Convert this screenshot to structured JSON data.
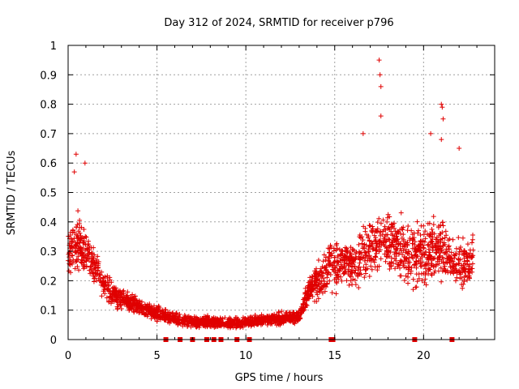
{
  "chart_data": {
    "type": "scatter",
    "title": "Day 312 of 2024, SRMTID for receiver p796",
    "xlabel": "GPS time / hours",
    "ylabel": "SRMTID / TECUs",
    "xlim": [
      0,
      24
    ],
    "ylim": [
      0,
      1
    ],
    "xticks": [
      0,
      5,
      10,
      15,
      20
    ],
    "xtick_labels": [
      "0",
      "5",
      "10",
      "15",
      "20"
    ],
    "yticks": [
      0,
      0.1,
      0.2,
      0.3,
      0.4,
      0.5,
      0.6,
      0.7,
      0.8,
      0.9,
      1
    ],
    "ytick_labels": [
      "0",
      "0.1",
      "0.2",
      "0.3",
      "0.4",
      "0.5",
      "0.6",
      "0.7",
      "0.8",
      "0.9",
      "1"
    ],
    "grid": true,
    "marker": "plus",
    "color": "#e00000",
    "series": [
      {
        "name": "SRMTID",
        "envelope": {
          "x": [
            0,
            0.5,
            1,
            1.5,
            2,
            3,
            4,
            5,
            6,
            7,
            8,
            9,
            10,
            11,
            12,
            13,
            13.5,
            14,
            14.5,
            15,
            16,
            17,
            17.5,
            18,
            19,
            20,
            20.5,
            21,
            21.5,
            22,
            22.5,
            22.8
          ],
          "center": [
            0.3,
            0.33,
            0.3,
            0.25,
            0.18,
            0.14,
            0.11,
            0.09,
            0.07,
            0.06,
            0.06,
            0.055,
            0.06,
            0.065,
            0.07,
            0.08,
            0.16,
            0.2,
            0.22,
            0.26,
            0.25,
            0.3,
            0.33,
            0.35,
            0.3,
            0.28,
            0.3,
            0.32,
            0.28,
            0.25,
            0.26,
            0.28
          ],
          "spread": [
            0.12,
            0.14,
            0.12,
            0.08,
            0.06,
            0.05,
            0.04,
            0.035,
            0.03,
            0.025,
            0.025,
            0.025,
            0.025,
            0.025,
            0.03,
            0.03,
            0.05,
            0.08,
            0.1,
            0.12,
            0.12,
            0.14,
            0.14,
            0.15,
            0.14,
            0.14,
            0.14,
            0.15,
            0.12,
            0.12,
            0.1,
            0.1
          ],
          "count_per_hour": 110
        },
        "outliers": [
          {
            "x": 0.45,
            "y": 0.63
          },
          {
            "x": 0.95,
            "y": 0.6
          },
          {
            "x": 0.35,
            "y": 0.57
          },
          {
            "x": 17.5,
            "y": 0.95
          },
          {
            "x": 17.55,
            "y": 0.9
          },
          {
            "x": 17.6,
            "y": 0.86
          },
          {
            "x": 17.6,
            "y": 0.76
          },
          {
            "x": 21.0,
            "y": 0.8
          },
          {
            "x": 21.05,
            "y": 0.79
          },
          {
            "x": 21.1,
            "y": 0.75
          },
          {
            "x": 20.4,
            "y": 0.7
          },
          {
            "x": 16.6,
            "y": 0.7
          },
          {
            "x": 21.0,
            "y": 0.68
          },
          {
            "x": 22.0,
            "y": 0.65
          }
        ],
        "zero_points": [
          5.5,
          6.3,
          7.0,
          7.8,
          8.2,
          8.6,
          9.5,
          10.2,
          14.8,
          14.9,
          19.5,
          21.6
        ]
      }
    ]
  }
}
